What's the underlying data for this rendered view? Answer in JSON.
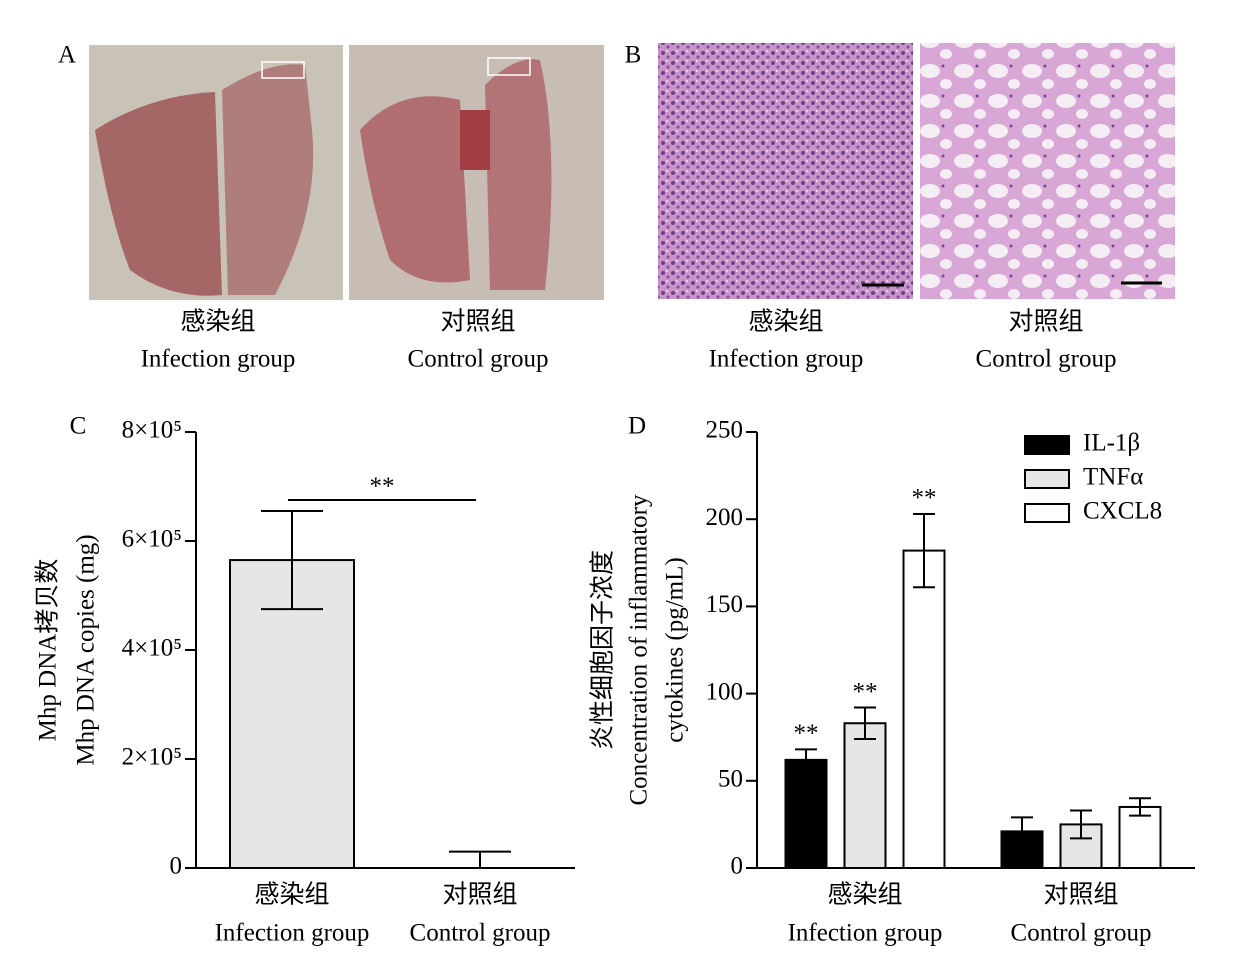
{
  "panels": [
    {
      "label": "A",
      "captions": [
        {
          "zh": "感染组",
          "en": "Infection group"
        },
        {
          "zh": "对照组",
          "en": "Control group"
        }
      ]
    },
    {
      "label": "B",
      "captions": [
        {
          "zh": "感染组",
          "en": "Infection group"
        },
        {
          "zh": "对照组",
          "en": "Control group"
        }
      ]
    }
  ],
  "chart_data": [
    {
      "type": "bar",
      "label": "C",
      "y_label": [
        "Mhp DNA拷贝数",
        "Mhp DNA copies (mg)"
      ],
      "categories": [
        "感染组",
        "对照组"
      ],
      "categories_en": [
        "Infection group",
        "Control group"
      ],
      "values": [
        565000,
        0
      ],
      "errors": [
        90000,
        30000
      ],
      "color": "#e6e6e6",
      "significance": "**",
      "ylim": [
        0,
        800000
      ],
      "yticks": [
        0,
        {
          "value": 200000,
          "label": "2×10⁵"
        },
        {
          "value": 400000,
          "label": "4×10⁵"
        },
        {
          "value": 600000,
          "label": "6×10⁵"
        },
        {
          "value": 800000,
          "label": "8×10⁵"
        }
      ]
    },
    {
      "type": "grouped_bar",
      "label": "D",
      "y_label": [
        "炎性细胞因子浓度",
        "Concentration of inflammatory",
        "cytokines (pg/mL)"
      ],
      "categories": [
        "感染组",
        "对照组"
      ],
      "categories_en": [
        "Infection group",
        "Control group"
      ],
      "series": [
        {
          "name": "IL-1β",
          "color": "#000000",
          "values": [
            62,
            21
          ],
          "errors": [
            6,
            8
          ],
          "significance": [
            "**",
            null
          ]
        },
        {
          "name": "TNFα",
          "color": "#e6e6e6",
          "values": [
            83,
            25
          ],
          "errors": [
            9,
            8
          ],
          "significance": [
            "**",
            null
          ]
        },
        {
          "name": "CXCL8",
          "color": "#ffffff",
          "values": [
            182,
            35
          ],
          "errors": [
            21,
            5
          ],
          "significance": [
            "**",
            null
          ]
        }
      ],
      "legend": "upper right",
      "ylim": [
        0,
        250
      ],
      "yticks": [
        0,
        50,
        100,
        150,
        200,
        250
      ]
    }
  ]
}
